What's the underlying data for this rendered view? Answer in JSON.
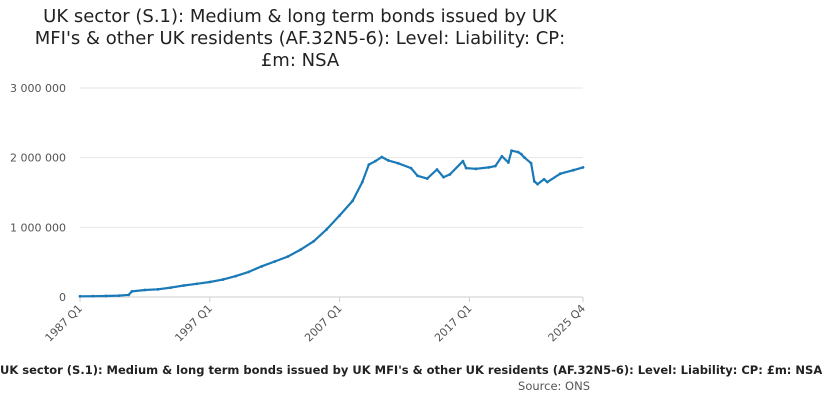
{
  "chart_data": {
    "type": "line",
    "title": "UK sector (S.1): Medium & long term bonds issued by UK MFI's & other UK residents (AF.32N5-6): Level: Liability: CP: £m: NSA",
    "xlabel": "",
    "ylabel": "",
    "ylim": [
      0,
      3000000
    ],
    "yticks": [
      0,
      1000000,
      2000000,
      3000000
    ],
    "ytick_labels": [
      "0",
      "1 000 000",
      "2 000 000",
      "3 000 000"
    ],
    "xtick_labels": [
      "1987 Q1",
      "1997 Q1",
      "2007 Q1",
      "2017 Q1",
      "2025 Q4"
    ],
    "grid": true,
    "series_color": "#1a7ab8",
    "series": [
      {
        "name": "Medium & long term bonds issued by UK MFI's & other UK residents (AF.32N5-6): Level: Liability: CP: £m: NSA",
        "x": [
          1987.0,
          1988.0,
          1989.0,
          1990.0,
          1990.75,
          1991.0,
          1992.0,
          1993.0,
          1994.0,
          1995.0,
          1996.0,
          1997.0,
          1998.0,
          1999.0,
          2000.0,
          2001.0,
          2002.0,
          2003.0,
          2004.0,
          2005.0,
          2006.0,
          2007.0,
          2008.0,
          2008.75,
          2009.25,
          2009.75,
          2010.25,
          2010.75,
          2011.5,
          2012.5,
          2013.0,
          2013.75,
          2014.5,
          2015.0,
          2015.5,
          2016.5,
          2016.75,
          2017.5,
          2018.5,
          2019.0,
          2019.5,
          2020.0,
          2020.25,
          2020.75,
          2021.0,
          2021.25,
          2021.75,
          2022.0,
          2022.25,
          2022.75,
          2023.0,
          2024.0,
          2025.0,
          2025.75
        ],
        "values": [
          10000,
          12000,
          15000,
          20000,
          30000,
          80000,
          100000,
          110000,
          135000,
          165000,
          190000,
          215000,
          250000,
          300000,
          360000,
          440000,
          510000,
          580000,
          680000,
          800000,
          970000,
          1170000,
          1380000,
          1650000,
          1900000,
          1950000,
          2010000,
          1960000,
          1920000,
          1850000,
          1740000,
          1700000,
          1830000,
          1720000,
          1760000,
          1950000,
          1850000,
          1840000,
          1860000,
          1880000,
          2020000,
          1930000,
          2100000,
          2080000,
          2050000,
          2000000,
          1920000,
          1660000,
          1620000,
          1690000,
          1650000,
          1770000,
          1820000,
          1860000
        ]
      }
    ]
  },
  "caption": "UK sector (S.1): Medium & long term bonds issued by UK MFI's & other UK residents (AF.32N5-6): Level: Liability: CP: £m: NSA",
  "source": "Source: ONS"
}
